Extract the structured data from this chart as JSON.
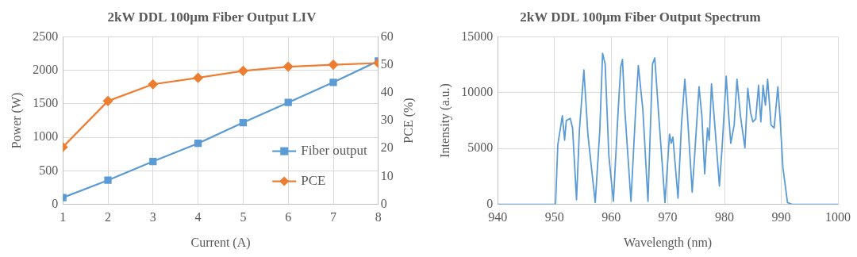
{
  "chart_data": [
    {
      "type": "line",
      "title": "2kW DDL 100µm Fiber Output LIV",
      "xlabel": "Current (A)",
      "ylabel": "Power (W)",
      "y2label": "PCE (%)",
      "x": [
        1,
        2,
        3,
        4,
        5,
        6,
        7,
        8
      ],
      "xlim": [
        1,
        8
      ],
      "xticks": [
        1,
        2,
        3,
        4,
        5,
        6,
        7,
        8
      ],
      "ylim": [
        0,
        2500
      ],
      "yticks": [
        0,
        500,
        1000,
        1500,
        2000,
        2500
      ],
      "y2lim": [
        0,
        60
      ],
      "y2ticks": [
        0,
        10,
        20,
        30,
        40,
        50,
        60
      ],
      "grid": true,
      "legend": "bottom right",
      "series": [
        {
          "name": "Fiber output",
          "color": "#5b9bd5",
          "marker": "square",
          "values": [
            100,
            360,
            640,
            910,
            1220,
            1520,
            1820,
            2140
          ]
        },
        {
          "name": "PCE",
          "color": "#ed7d31",
          "marker": "diamond",
          "axis": "y2",
          "values": [
            20.5,
            37,
            43,
            45.3,
            47.8,
            49.3,
            50,
            50.6
          ]
        }
      ]
    },
    {
      "type": "line",
      "title": "2kW DDL 100µm Fiber Output Spectrum",
      "xlabel": "Wavelength (nm)",
      "ylabel": "Intensity (a.u.)",
      "xlim": [
        940,
        1000
      ],
      "xticks": [
        940,
        950,
        960,
        970,
        980,
        990,
        1000
      ],
      "ylim": [
        0,
        15000
      ],
      "yticks": [
        0,
        5000,
        10000,
        15000
      ],
      "grid": true,
      "legend": false,
      "marker": "none",
      "series": [
        {
          "color": "#5b9bd5",
          "x": [
            940,
            950.2,
            950.6,
            951.4,
            951.8,
            952.1,
            952.8,
            953.2,
            953.9,
            954.4,
            955.2,
            955.9,
            957.2,
            958,
            958.5,
            958.95,
            959.6,
            960.4,
            961.25,
            961.7,
            962,
            962.45,
            963.5,
            964.3,
            964.8,
            965.6,
            966.5,
            967.3,
            967.7,
            968.4,
            969.5,
            970.3,
            970.6,
            970.9,
            971.8,
            972.4,
            973,
            973.4,
            974.3,
            974.8,
            975.5,
            976,
            976.5,
            977,
            977.3,
            977.7,
            978.2,
            979.1,
            979.6,
            980.3,
            980.7,
            981.1,
            981.7,
            982.2,
            982.8,
            983.1,
            983.6,
            984.1,
            984.6,
            985,
            985.5,
            986,
            986.4,
            986.8,
            987.2,
            987.6,
            988.2,
            988.75,
            989.4,
            989.8,
            990.3,
            991.1,
            991.9,
            1000
          ],
          "values": [
            0,
            0,
            5330,
            7930,
            5740,
            7510,
            7700,
            6830,
            410,
            6560,
            12030,
            6290,
            160,
            6560,
            13530,
            12570,
            4370,
            270,
            8470,
            12300,
            12980,
            8200,
            270,
            8200,
            12430,
            8470,
            270,
            12570,
            13110,
            7930,
            160,
            6290,
            5470,
            6010,
            550,
            7100,
            11200,
            8470,
            1090,
            4920,
            10520,
            7930,
            2730,
            6830,
            5740,
            10790,
            7650,
            1640,
            5330,
            11470,
            8200,
            5470,
            7100,
            11200,
            7930,
            6830,
            5060,
            10380,
            8200,
            7380,
            7650,
            10660,
            7380,
            10660,
            8880,
            11200,
            7100,
            6830,
            10520,
            7650,
            3280,
            160,
            0,
            0
          ]
        }
      ]
    }
  ]
}
